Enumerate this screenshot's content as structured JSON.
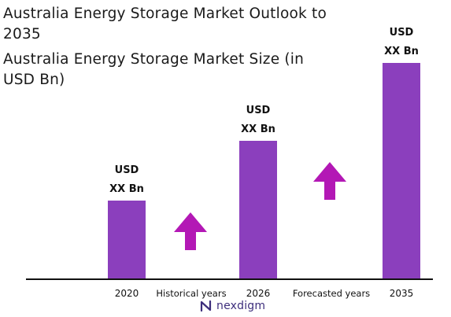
{
  "title": "Australia Energy Storage Market Outlook to 2035",
  "subtitle": "Australia Energy Storage Market Size (in USD Bn)",
  "colors": {
    "bar": "#8b3fbd",
    "arrow": "#b318b5",
    "axis": "#111111",
    "brand": "#3d2e7c"
  },
  "chart_data": {
    "type": "bar",
    "categories": [
      "2020",
      "2026",
      "2035"
    ],
    "values": [
      100,
      176,
      275
    ],
    "value_labels": [
      [
        "USD",
        "XX Bn"
      ],
      [
        "USD",
        "XX Bn"
      ],
      [
        "USD",
        "XX Bn"
      ]
    ],
    "period_labels": [
      "Historical years",
      "Forecasted years"
    ],
    "arrows": [
      "up",
      "up"
    ],
    "title": "Australia Energy Storage Market Outlook to 2035",
    "subtitle": "Australia Energy Storage Market Size (in USD Bn)",
    "ylim": [
      0,
      290
    ],
    "grid": false,
    "legend": "none"
  },
  "brand": {
    "name": "nexdigm",
    "icon": "nexdigm-logo-icon"
  }
}
